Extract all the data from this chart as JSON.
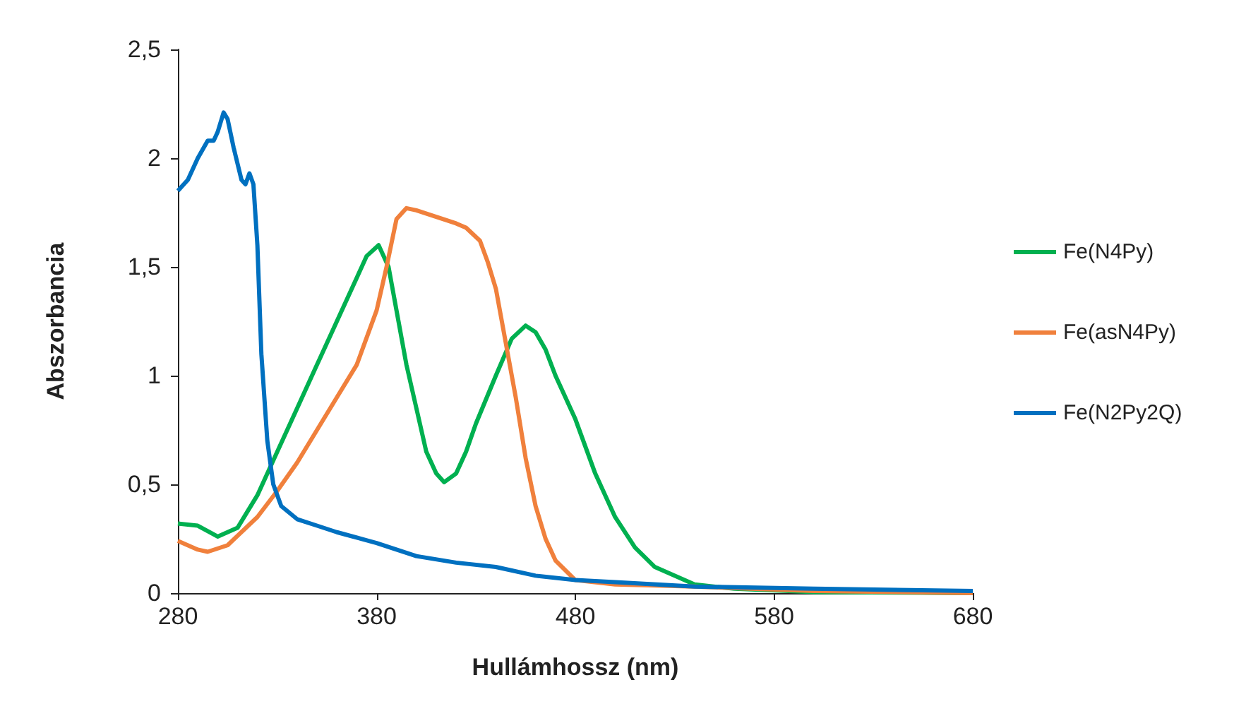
{
  "chart_data": {
    "type": "line",
    "xlabel": "Hullámhossz (nm)",
    "ylabel": "Abszorbancia",
    "xlim": [
      280,
      680
    ],
    "xticks": [
      280,
      380,
      480,
      580,
      680
    ],
    "ylim": [
      0,
      2.5
    ],
    "yticks": [
      0,
      {
        "value": 0.5,
        "label": "0,5"
      },
      1,
      {
        "value": 1.5,
        "label": "1,5"
      },
      2,
      {
        "value": 2.5,
        "label": "2,5"
      }
    ],
    "grid": false,
    "legend": "right",
    "marker": "none",
    "line_style": "solid",
    "series": [
      {
        "name": "Fe(N4Py)",
        "color": "#00b050",
        "x": [
          280,
          290,
          300,
          310,
          320,
          330,
          340,
          350,
          360,
          370,
          375,
          381,
          386,
          390,
          395,
          400,
          405,
          410,
          414,
          420,
          425,
          430,
          440,
          448,
          455,
          460,
          465,
          470,
          480,
          490,
          500,
          510,
          520,
          540,
          560,
          600,
          680
        ],
        "values": [
          0.32,
          0.31,
          0.26,
          0.3,
          0.45,
          0.65,
          0.85,
          1.05,
          1.25,
          1.45,
          1.55,
          1.6,
          1.5,
          1.3,
          1.05,
          0.85,
          0.65,
          0.55,
          0.51,
          0.55,
          0.65,
          0.78,
          1.0,
          1.17,
          1.23,
          1.2,
          1.12,
          1.0,
          0.8,
          0.55,
          0.35,
          0.21,
          0.12,
          0.04,
          0.02,
          0.005,
          0
        ]
      },
      {
        "name": "Fe(asN4Py)",
        "color": "#f0803c",
        "x": [
          280,
          290,
          295,
          305,
          320,
          330,
          340,
          350,
          360,
          370,
          380,
          385,
          390,
          395,
          400,
          410,
          420,
          425,
          432,
          436,
          440,
          445,
          450,
          455,
          460,
          465,
          470,
          480,
          500,
          540,
          600,
          680
        ],
        "values": [
          0.24,
          0.2,
          0.19,
          0.22,
          0.35,
          0.47,
          0.6,
          0.75,
          0.9,
          1.05,
          1.3,
          1.5,
          1.72,
          1.77,
          1.76,
          1.73,
          1.7,
          1.68,
          1.62,
          1.52,
          1.4,
          1.15,
          0.9,
          0.62,
          0.4,
          0.25,
          0.15,
          0.06,
          0.04,
          0.03,
          0.01,
          0
        ]
      },
      {
        "name": "Fe(N2Py2Q)",
        "color": "#0070c0",
        "x": [
          280,
          285,
          290,
          295,
          298,
          300,
          303,
          305,
          308,
          312,
          314,
          316,
          318,
          320,
          322,
          325,
          328,
          332,
          340,
          350,
          360,
          380,
          400,
          420,
          440,
          460,
          480,
          500,
          540,
          600,
          680
        ],
        "values": [
          1.85,
          1.9,
          2.0,
          2.08,
          2.08,
          2.12,
          2.21,
          2.18,
          2.05,
          1.9,
          1.88,
          1.93,
          1.88,
          1.6,
          1.1,
          0.7,
          0.5,
          0.4,
          0.34,
          0.31,
          0.28,
          0.23,
          0.17,
          0.14,
          0.12,
          0.08,
          0.06,
          0.05,
          0.03,
          0.02,
          0.01
        ]
      }
    ]
  }
}
